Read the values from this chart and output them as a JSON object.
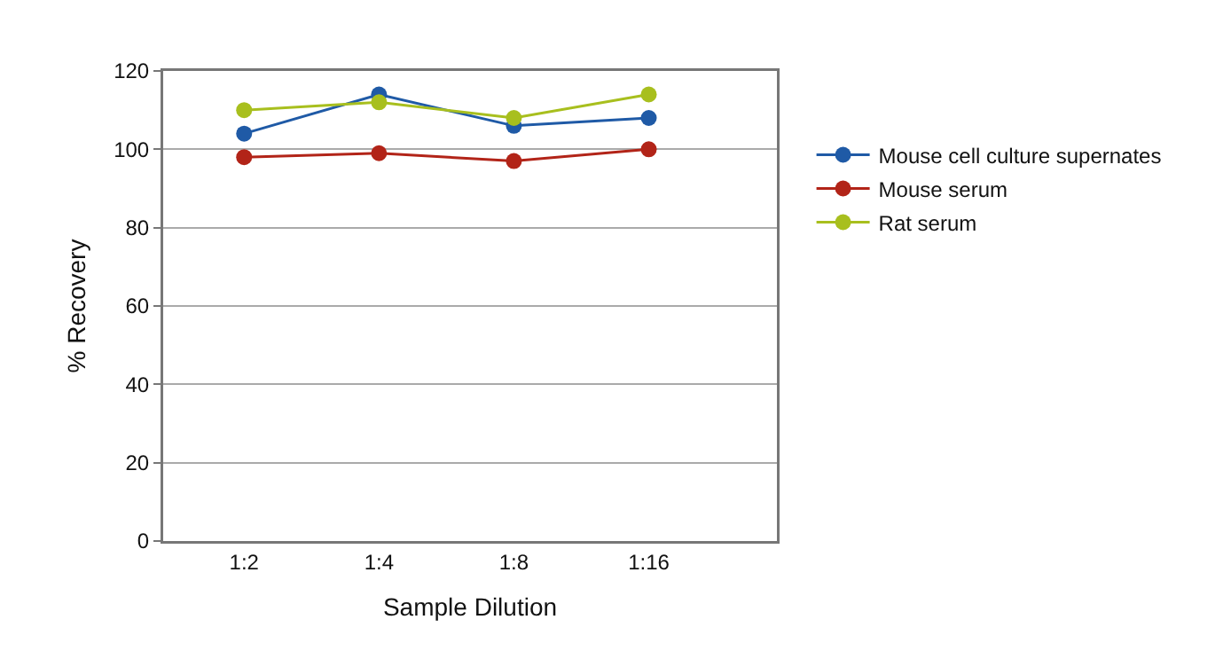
{
  "chart_data": {
    "type": "line",
    "xlabel": "Sample Dilution",
    "ylabel": "% Recovery",
    "categories": [
      "1:2",
      "1:4",
      "1:8",
      "1:16"
    ],
    "series": [
      {
        "name": "Mouse cell culture supernates",
        "color": "#1f5aa6",
        "values": [
          104,
          114,
          106,
          108
        ]
      },
      {
        "name": "Mouse serum",
        "color": "#b22418",
        "values": [
          98,
          99,
          97,
          100
        ]
      },
      {
        "name": "Rat serum",
        "color": "#a8bf1e",
        "values": [
          110,
          112,
          108,
          114
        ]
      }
    ],
    "ylim": [
      0,
      120
    ],
    "yticks": [
      0,
      20,
      40,
      60,
      80,
      100,
      120
    ],
    "grid": "y",
    "legend": "right",
    "marker": "circle",
    "line_style": "solid"
  }
}
